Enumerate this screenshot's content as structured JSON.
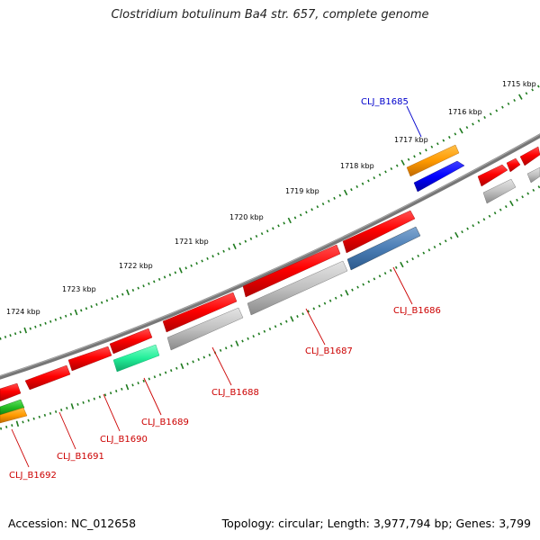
{
  "title": "Clostridium botulinum Ba4 str. 657, complete genome",
  "footer": {
    "accession": "Accession: NC_012658",
    "summary": "Topology: circular; Length: 3,977,794 bp; Genes: 3,799"
  },
  "colors": {
    "backbone": "#7a7a7a",
    "ticks": "#1e7a1e",
    "label_red": "#cc0000",
    "label_blue": "#0000cc"
  },
  "ticks": [
    {
      "label": "1715 kbp"
    },
    {
      "label": "1716 kbp"
    },
    {
      "label": "1717 kbp"
    },
    {
      "label": "1718 kbp"
    },
    {
      "label": "1719 kbp"
    },
    {
      "label": "1720 kbp"
    },
    {
      "label": "1721 kbp"
    },
    {
      "label": "1722 kbp"
    },
    {
      "label": "1723 kbp"
    },
    {
      "label": "1724 kbp"
    }
  ],
  "genes": [
    {
      "label": "CLJ_B1685",
      "label_color": "blue"
    },
    {
      "label": "CLJ_B1686",
      "label_color": "red"
    },
    {
      "label": "CLJ_B1687",
      "label_color": "red"
    },
    {
      "label": "CLJ_B1688",
      "label_color": "red"
    },
    {
      "label": "CLJ_B1689",
      "label_color": "red"
    },
    {
      "label": "CLJ_B1690",
      "label_color": "red"
    },
    {
      "label": "CLJ_B1691",
      "label_color": "red"
    },
    {
      "label": "CLJ_B1692",
      "label_color": "red"
    }
  ]
}
